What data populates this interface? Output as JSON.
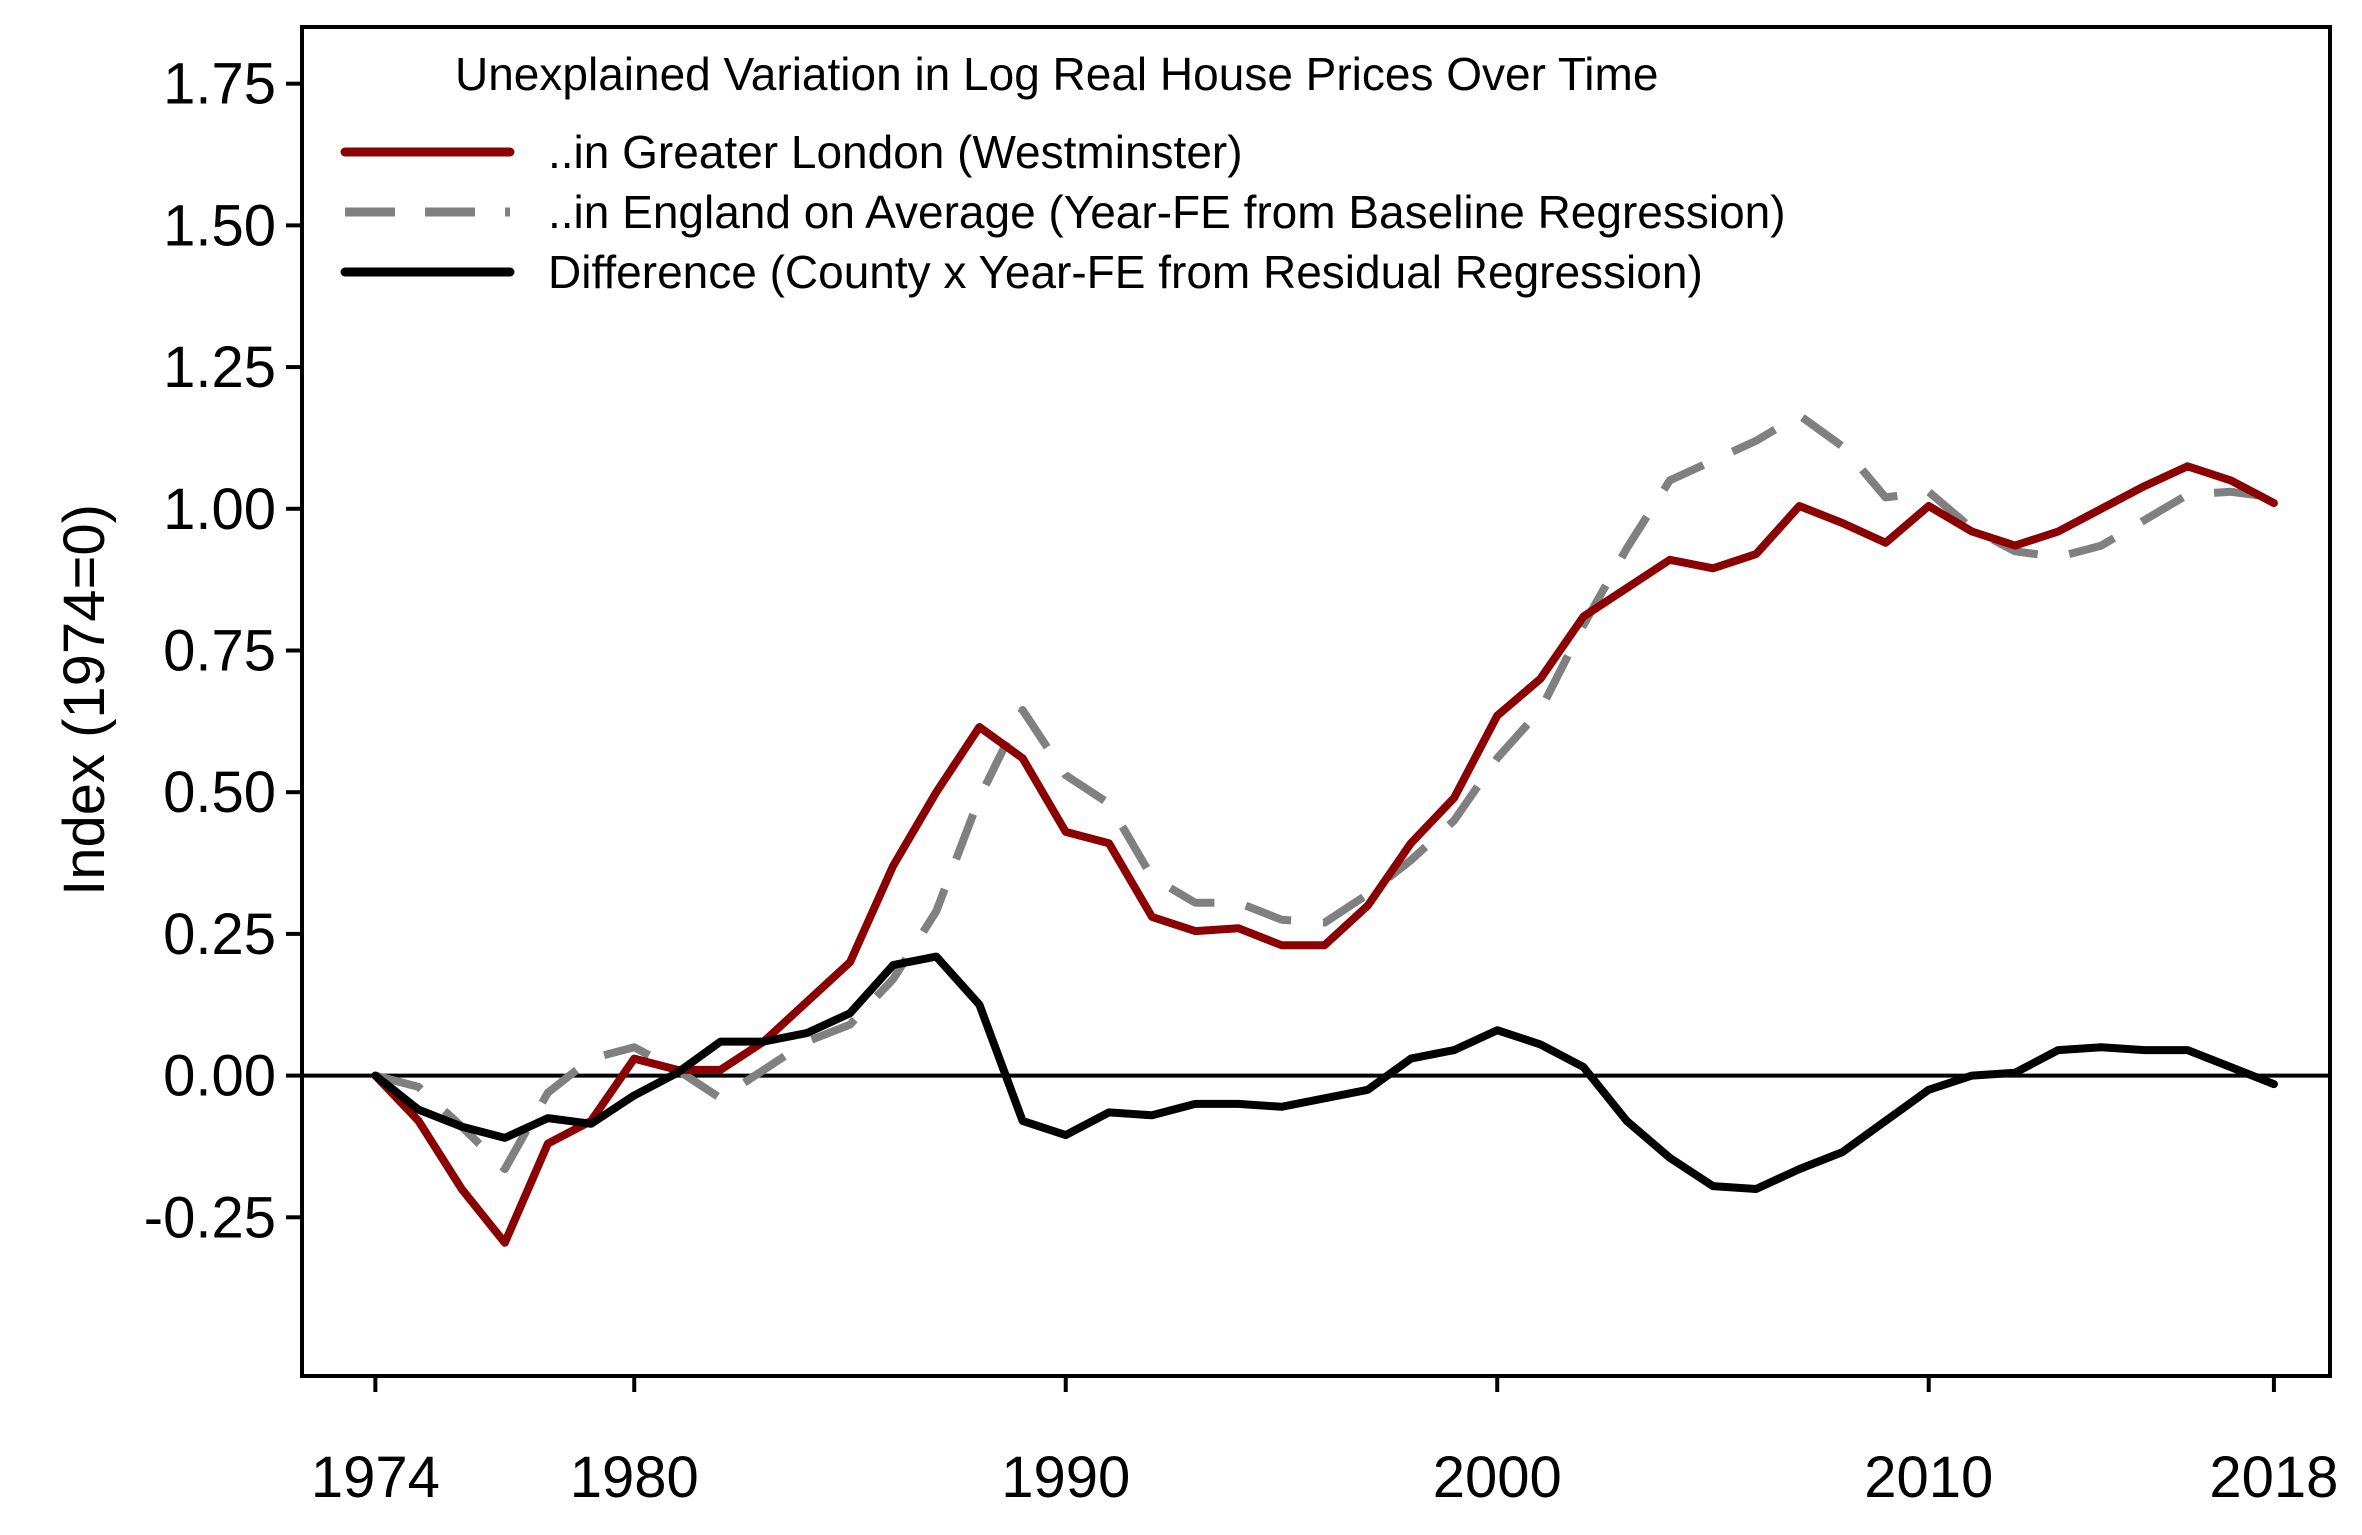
{
  "chart_data": {
    "type": "line",
    "title": "",
    "xlabel": "",
    "ylabel": "Index (1974=0)",
    "xlim": [
      1972.3,
      2019.3
    ],
    "ylim": [
      -0.53,
      1.85
    ],
    "x_ticks": [
      1974,
      1980,
      1990,
      2000,
      2010,
      2018
    ],
    "y_ticks": [
      -0.25,
      0.0,
      0.25,
      0.5,
      0.75,
      1.0,
      1.25,
      1.5,
      1.75
    ],
    "y_tick_labels": [
      "-0.25",
      "0.00",
      "0.25",
      "0.50",
      "0.75",
      "1.00",
      "1.25",
      "1.50",
      "1.75"
    ],
    "grid": false,
    "reference_line": 0,
    "legend": {
      "title": "Unexplained Variation in Log Real House Prices Over Time",
      "placement": "top-left"
    },
    "x": [
      1974,
      1975,
      1976,
      1977,
      1978,
      1979,
      1980,
      1981,
      1982,
      1983,
      1984,
      1985,
      1986,
      1987,
      1988,
      1989,
      1990,
      1991,
      1992,
      1993,
      1994,
      1995,
      1996,
      1997,
      1998,
      1999,
      2000,
      2001,
      2002,
      2003,
      2004,
      2005,
      2006,
      2007,
      2008,
      2009,
      2010,
      2011,
      2012,
      2013,
      2014,
      2015,
      2016,
      2017,
      2018
    ],
    "series": [
      {
        "name": "..in Greater London (Westminster)",
        "color": "#8b0000",
        "style": "solid",
        "values": [
          0.0,
          -0.08,
          -0.2,
          -0.295,
          -0.12,
          -0.08,
          0.03,
          0.01,
          0.01,
          0.06,
          0.13,
          0.2,
          0.37,
          0.5,
          0.615,
          0.56,
          0.43,
          0.41,
          0.28,
          0.255,
          0.26,
          0.23,
          0.23,
          0.3,
          0.41,
          0.49,
          0.635,
          0.7,
          0.81,
          0.86,
          0.91,
          0.895,
          0.92,
          1.005,
          0.975,
          0.94,
          1.005,
          0.96,
          0.935,
          0.96,
          1.0,
          1.04,
          1.075,
          1.05,
          1.01
        ]
      },
      {
        "name": "..in England on Average (Year-FE from Baseline Regression)",
        "color": "#808080",
        "style": "dashed",
        "values": [
          0.0,
          -0.02,
          -0.09,
          -0.165,
          -0.03,
          0.03,
          0.05,
          0.01,
          -0.04,
          0.01,
          0.06,
          0.09,
          0.17,
          0.29,
          0.49,
          0.645,
          0.53,
          0.48,
          0.35,
          0.305,
          0.305,
          0.275,
          0.27,
          0.32,
          0.38,
          0.45,
          0.56,
          0.645,
          0.795,
          0.93,
          1.05,
          1.085,
          1.12,
          1.165,
          1.11,
          1.02,
          1.03,
          0.965,
          0.925,
          0.915,
          0.935,
          0.98,
          1.025,
          1.03,
          1.02
        ]
      },
      {
        "name": "Difference (County x Year-FE from Residual Regression)",
        "color": "#000000",
        "style": "solid",
        "values": [
          0.0,
          -0.06,
          -0.09,
          -0.11,
          -0.075,
          -0.085,
          -0.035,
          0.005,
          0.06,
          0.06,
          0.075,
          0.11,
          0.195,
          0.21,
          0.125,
          -0.08,
          -0.105,
          -0.065,
          -0.07,
          -0.05,
          -0.05,
          -0.055,
          -0.04,
          -0.025,
          0.03,
          0.045,
          0.08,
          0.055,
          0.015,
          -0.08,
          -0.145,
          -0.195,
          -0.2,
          -0.165,
          -0.135,
          -0.08,
          -0.025,
          0.0,
          0.005,
          0.045,
          0.05,
          0.045,
          0.045,
          0.015,
          -0.015
        ]
      }
    ]
  }
}
